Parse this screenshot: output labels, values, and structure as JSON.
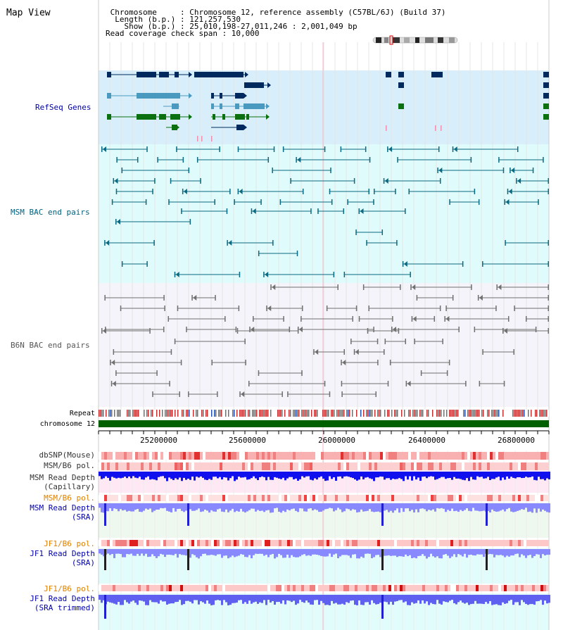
{
  "header": {
    "title": "Map View",
    "lines": [
      " Chromosome     : Chromosome 12, reference assembly (C57BL/6J) (Build 37)",
      "  Length (b.p.) : 121,257,530",
      "    Show (b.p.) : 25,010,198-27,011,246 : 2,001,049 bp",
      "Read coverage check span : 10,000"
    ]
  },
  "tracks": {
    "refseq": "RefSeq Genes",
    "msm_bac": "MSM BAC end pairs",
    "b6n_bac": "B6N BAC end pairs",
    "repeat": "Repeat",
    "chromosome": "chromosome 12",
    "dbsnp": "dbSNP(Mouse)",
    "msm_pol1": "MSM/B6 pol.",
    "msm_depth_cap_1": "MSM Read Depth",
    "msm_depth_cap_2": "(Capillary)",
    "msm_pol2": "MSM/B6 pol.",
    "msm_depth_sra_1": "MSM Read Depth",
    "msm_depth_sra_2": "(SRA)",
    "jf1_pol1": "JF1/B6 pol.",
    "jf1_depth_sra_1": "JF1 Read Depth",
    "jf1_depth_sra_2": "(SRA)",
    "jf1_pol2": "JF1/B6 pol.",
    "jf1_depth_trim_1": "JF1 Read Depth",
    "jf1_depth_trim_2": "(SRA trimmed)"
  },
  "axis": {
    "ticks": [
      "25200000",
      "25600000",
      "26000000",
      "26400000",
      "26800000"
    ]
  },
  "colors": {
    "refseq_bg": "#d8eefa",
    "msm_bg": "#e0fbfb",
    "b6n_bg": "#f4f4fa",
    "navy": "#002a5e",
    "teal": "#0c6a82",
    "steel": "#4a9ac0",
    "green": "#0a7010",
    "gray": "#707070",
    "label_blue": "#0000aa",
    "label_teal": "#006080",
    "label_orange": "#e08000",
    "chrom_green": "#006000"
  }
}
